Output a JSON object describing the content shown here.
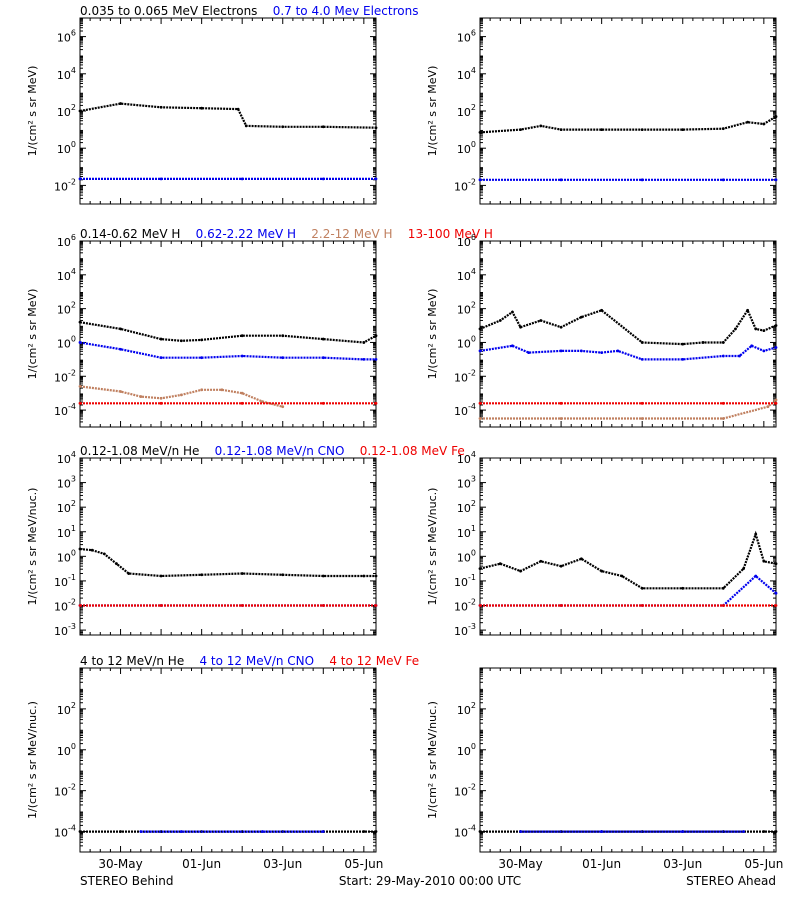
{
  "colors": {
    "black": "#000000",
    "blue": "#0000ee",
    "tan": "#c08060",
    "red": "#ee0000"
  },
  "ytitles": {
    "per_mev": "1/(cm² s sr MeV)",
    "per_nuc": "1/(cm² s sr MeV/nuc.)"
  },
  "x_ticks": [
    "30-May",
    "01-Jun",
    "03-Jun",
    "05-Jun"
  ],
  "x_tick_days": [
    1,
    3,
    5,
    7
  ],
  "footer": {
    "left": "STEREO Behind",
    "center": "Start: 29-May-2010 00:00 UTC",
    "right": "STEREO Ahead"
  },
  "rows": [
    {
      "legend": [
        {
          "text": "0.035 to 0.065 MeV Electrons",
          "color": "#000000"
        },
        {
          "text": "0.7 to 4.0 Mev Electrons",
          "color": "#0000ee"
        }
      ],
      "ylog": true,
      "ylim": [
        -3,
        7
      ],
      "yticks": [
        {
          "base": "10",
          "exp": "6",
          "value": 6
        },
        {
          "base": "10",
          "exp": "4",
          "value": 4
        },
        {
          "base": "10",
          "exp": "2",
          "value": 2
        },
        {
          "base": "10",
          "exp": "0",
          "value": 0
        },
        {
          "base": "10",
          "exp": "-2",
          "value": -2
        }
      ],
      "ytitle_key": "per_mev"
    },
    {
      "legend": [
        {
          "text": "0.14-0.62 MeV H",
          "color": "#000000"
        },
        {
          "text": "0.62-2.22 MeV H",
          "color": "#0000ee"
        },
        {
          "text": "2.2-12 MeV H",
          "color": "#c08060"
        },
        {
          "text": "13-100 MeV H",
          "color": "#ee0000"
        }
      ],
      "ylog": true,
      "ylim": [
        -5,
        6
      ],
      "yticks": [
        {
          "base": "10",
          "exp": "6",
          "value": 6
        },
        {
          "base": "10",
          "exp": "4",
          "value": 4
        },
        {
          "base": "10",
          "exp": "2",
          "value": 2
        },
        {
          "base": "10",
          "exp": "0",
          "value": 0
        },
        {
          "base": "10",
          "exp": "-2",
          "value": -2
        },
        {
          "base": "10",
          "exp": "-4",
          "value": -4
        }
      ],
      "ytitle_key": "per_mev"
    },
    {
      "legend": [
        {
          "text": "0.12-1.08 MeV/n He",
          "color": "#000000"
        },
        {
          "text": "0.12-1.08 MeV/n CNO",
          "color": "#0000ee"
        },
        {
          "text": "0.12-1.08 MeV Fe",
          "color": "#ee0000"
        }
      ],
      "ylog": true,
      "ylim": [
        -3.2,
        4
      ],
      "yticks": [
        {
          "base": "10",
          "exp": "4",
          "value": 4
        },
        {
          "base": "10",
          "exp": "3",
          "value": 3
        },
        {
          "base": "10",
          "exp": "2",
          "value": 2
        },
        {
          "base": "10",
          "exp": "1",
          "value": 1
        },
        {
          "base": "10",
          "exp": "0",
          "value": 0
        },
        {
          "base": "10",
          "exp": "-1",
          "value": -1
        },
        {
          "base": "10",
          "exp": "-2",
          "value": -2
        },
        {
          "base": "10",
          "exp": "-3",
          "value": -3
        }
      ],
      "ytitle_key": "per_nuc"
    },
    {
      "legend": [
        {
          "text": "4 to 12 MeV/n He",
          "color": "#000000"
        },
        {
          "text": "4 to 12 MeV/n CNO",
          "color": "#0000ee"
        },
        {
          "text": "4 to 12 MeV Fe",
          "color": "#ee0000"
        }
      ],
      "ylog": true,
      "ylim": [
        -5,
        4
      ],
      "yticks": [
        {
          "base": "10",
          "exp": "2",
          "value": 2
        },
        {
          "base": "10",
          "exp": "0",
          "value": 0
        },
        {
          "base": "10",
          "exp": "-2",
          "value": -2
        },
        {
          "base": "10",
          "exp": "-4",
          "value": -4
        }
      ],
      "ytitle_key": "per_nuc"
    }
  ],
  "chart_data": [
    {
      "type": "scatter",
      "panel": "behind-electrons",
      "ylog": true,
      "xlim": [
        0,
        7.3
      ],
      "ylim_log10": [
        -3,
        7
      ],
      "series": [
        {
          "name": "0.035 to 0.065 MeV Electrons",
          "color": "#000000",
          "x": [
            0,
            1,
            2,
            3,
            3.9,
            4.1,
            5,
            6,
            7.3
          ],
          "log10_y": [
            2.0,
            2.4,
            2.2,
            2.15,
            2.1,
            1.2,
            1.15,
            1.15,
            1.1
          ]
        },
        {
          "name": "0.7 to 4.0 Mev Electrons",
          "color": "#0000ee",
          "x": [
            0,
            2,
            4,
            6,
            7.3
          ],
          "log10_y": [
            -1.65,
            -1.65,
            -1.65,
            -1.65,
            -1.65
          ]
        }
      ]
    },
    {
      "type": "scatter",
      "panel": "ahead-electrons",
      "ylog": true,
      "xlim": [
        0,
        7.3
      ],
      "ylim_log10": [
        -3,
        7
      ],
      "series": [
        {
          "name": "0.035 to 0.065 MeV Electrons",
          "color": "#000000",
          "x": [
            0,
            1,
            1.5,
            2,
            3,
            4,
            5,
            6,
            6.6,
            7,
            7.3
          ],
          "log10_y": [
            0.85,
            1.0,
            1.2,
            1.0,
            1.0,
            1.0,
            1.0,
            1.05,
            1.4,
            1.3,
            1.7
          ]
        },
        {
          "name": "0.7 to 4.0 Mev Electrons",
          "color": "#0000ee",
          "x": [
            0,
            2,
            4,
            6,
            7.3
          ],
          "log10_y": [
            -1.7,
            -1.7,
            -1.7,
            -1.7,
            -1.7
          ]
        }
      ]
    },
    {
      "type": "scatter",
      "panel": "behind-protons",
      "ylog": true,
      "xlim": [
        0,
        7.3
      ],
      "ylim_log10": [
        -5,
        6
      ],
      "series": [
        {
          "name": "0.14-0.62 MeV H",
          "color": "#000000",
          "x": [
            0,
            1,
            2,
            2.5,
            3,
            4,
            5,
            6,
            7,
            7.3
          ],
          "log10_y": [
            1.2,
            0.8,
            0.2,
            0.1,
            0.15,
            0.4,
            0.4,
            0.2,
            0.0,
            0.4
          ]
        },
        {
          "name": "0.62-2.22 MeV H",
          "color": "#0000ee",
          "x": [
            0,
            1,
            2,
            3,
            4,
            5,
            6,
            7,
            7.3
          ],
          "log10_y": [
            0.0,
            -0.4,
            -0.9,
            -0.9,
            -0.8,
            -0.9,
            -0.9,
            -1.0,
            -1.0
          ]
        },
        {
          "name": "2.2-12 MeV H",
          "color": "#c08060",
          "x": [
            0,
            1,
            1.5,
            2,
            2.5,
            3,
            3.5,
            4,
            4.5,
            5
          ],
          "log10_y": [
            -2.6,
            -2.9,
            -3.2,
            -3.3,
            -3.1,
            -2.8,
            -2.8,
            -3.0,
            -3.5,
            -3.8
          ]
        },
        {
          "name": "13-100 MeV H",
          "color": "#ee0000",
          "x": [
            0,
            2,
            4,
            6,
            7.3
          ],
          "log10_y": [
            -3.6,
            -3.6,
            -3.6,
            -3.6,
            -3.6
          ]
        }
      ]
    },
    {
      "type": "scatter",
      "panel": "ahead-protons",
      "ylog": true,
      "xlim": [
        0,
        7.3
      ],
      "ylim_log10": [
        -5,
        6
      ],
      "series": [
        {
          "name": "0.14-0.62 MeV H",
          "color": "#000000",
          "x": [
            0,
            0.5,
            0.8,
            1.0,
            1.5,
            2,
            2.5,
            3,
            4,
            5,
            5.5,
            6,
            6.3,
            6.6,
            6.8,
            7,
            7.3
          ],
          "log10_y": [
            0.8,
            1.3,
            1.8,
            0.9,
            1.3,
            0.9,
            1.5,
            1.9,
            0.0,
            -0.1,
            0.0,
            0.0,
            0.8,
            1.9,
            0.8,
            0.7,
            1.0
          ]
        },
        {
          "name": "0.62-2.22 MeV H",
          "color": "#0000ee",
          "x": [
            0,
            0.8,
            1.2,
            2,
            2.5,
            3,
            3.4,
            4,
            5,
            6,
            6.4,
            6.7,
            7,
            7.3
          ],
          "log10_y": [
            -0.5,
            -0.2,
            -0.6,
            -0.5,
            -0.5,
            -0.6,
            -0.5,
            -1.0,
            -1.0,
            -0.8,
            -0.8,
            -0.2,
            -0.5,
            -0.3
          ]
        },
        {
          "name": "2.2-12 MeV H",
          "color": "#c08060",
          "x": [
            0,
            2,
            4,
            6,
            7.1,
            7.3
          ],
          "log10_y": [
            -4.5,
            -4.5,
            -4.5,
            -4.5,
            -3.8,
            -3.4
          ]
        },
        {
          "name": "13-100 MeV H",
          "color": "#ee0000",
          "x": [
            0,
            2,
            4,
            6,
            7.3
          ],
          "log10_y": [
            -3.6,
            -3.6,
            -3.6,
            -3.6,
            -3.6
          ]
        }
      ]
    },
    {
      "type": "scatter",
      "panel": "behind-heavy-low",
      "ylog": true,
      "xlim": [
        0,
        7.3
      ],
      "ylim_log10": [
        -3.2,
        4
      ],
      "series": [
        {
          "name": "0.12-1.08 MeV/n He",
          "color": "#000000",
          "x": [
            0,
            0.3,
            0.6,
            0.9,
            1.2,
            2,
            3,
            4,
            5,
            6,
            7,
            7.3
          ],
          "log10_y": [
            0.3,
            0.25,
            0.1,
            -0.3,
            -0.7,
            -0.8,
            -0.75,
            -0.7,
            -0.75,
            -0.8,
            -0.8,
            -0.8
          ]
        },
        {
          "name": "0.12-1.08 MeV/n CNO",
          "color": "#0000ee",
          "x": [
            0,
            2,
            4,
            6,
            7.3
          ],
          "log10_y": [
            -2.0,
            -2.0,
            -2.0,
            -2.0,
            -2.0
          ]
        },
        {
          "name": "0.12-1.08 MeV Fe",
          "color": "#ee0000",
          "x": [
            0,
            2,
            4,
            6,
            7.3
          ],
          "log10_y": [
            -2.0,
            -2.0,
            -2.0,
            -2.0,
            -2.0
          ]
        }
      ]
    },
    {
      "type": "scatter",
      "panel": "ahead-heavy-low",
      "ylog": true,
      "xlim": [
        0,
        7.3
      ],
      "ylim_log10": [
        -3.2,
        4
      ],
      "series": [
        {
          "name": "0.12-1.08 MeV/n He",
          "color": "#000000",
          "x": [
            0,
            0.5,
            1,
            1.5,
            2,
            2.5,
            3,
            3.5,
            4,
            5,
            6,
            6.5,
            6.8,
            7,
            7.3
          ],
          "log10_y": [
            -0.5,
            -0.3,
            -0.6,
            -0.2,
            -0.4,
            -0.1,
            -0.6,
            -0.8,
            -1.3,
            -1.3,
            -1.3,
            -0.5,
            0.9,
            -0.2,
            -0.3
          ]
        },
        {
          "name": "0.12-1.08 MeV/n CNO",
          "color": "#0000ee",
          "x": [
            0,
            2,
            4,
            6,
            6.8,
            7.3
          ],
          "log10_y": [
            -2.0,
            -2.0,
            -2.0,
            -2.0,
            -0.8,
            -1.5
          ]
        },
        {
          "name": "0.12-1.08 MeV Fe",
          "color": "#ee0000",
          "x": [
            0,
            2,
            4,
            6,
            7.3
          ],
          "log10_y": [
            -2.0,
            -2.0,
            -2.0,
            -2.0,
            -2.0
          ]
        }
      ]
    },
    {
      "type": "scatter",
      "panel": "behind-heavy-high",
      "ylog": true,
      "xlim": [
        0,
        7.3
      ],
      "ylim_log10": [
        -5,
        4
      ],
      "series": [
        {
          "name": "4 to 12 MeV/n He",
          "color": "#000000",
          "x": [
            0,
            1,
            2,
            3,
            4,
            5,
            6,
            7,
            7.3
          ],
          "log10_y": [
            -4,
            -4,
            -4,
            -4,
            -4,
            -4,
            -4,
            -4,
            -4
          ]
        },
        {
          "name": "4 to 12 MeV/n CNO",
          "color": "#0000ee",
          "x": [
            1.5,
            2.5,
            4.5,
            6
          ],
          "log10_y": [
            -4,
            -4,
            -4,
            -4
          ]
        },
        {
          "name": "4 to 12 MeV Fe",
          "color": "#ee0000",
          "x": [],
          "log10_y": []
        }
      ]
    },
    {
      "type": "scatter",
      "panel": "ahead-heavy-high",
      "ylog": true,
      "xlim": [
        0,
        7.3
      ],
      "ylim_log10": [
        -5,
        4
      ],
      "series": [
        {
          "name": "4 to 12 MeV/n He",
          "color": "#000000",
          "x": [
            0,
            1,
            2,
            3,
            4,
            5,
            6,
            7,
            7.3
          ],
          "log10_y": [
            -4,
            -4,
            -4,
            -4,
            -4,
            -4,
            -4,
            -4,
            -4
          ]
        },
        {
          "name": "4 to 12 MeV/n CNO",
          "color": "#0000ee",
          "x": [
            1,
            3,
            5,
            6.5
          ],
          "log10_y": [
            -4,
            -4,
            -4,
            -4
          ]
        },
        {
          "name": "4 to 12 MeV Fe",
          "color": "#ee0000",
          "x": [],
          "log10_y": []
        }
      ]
    }
  ]
}
